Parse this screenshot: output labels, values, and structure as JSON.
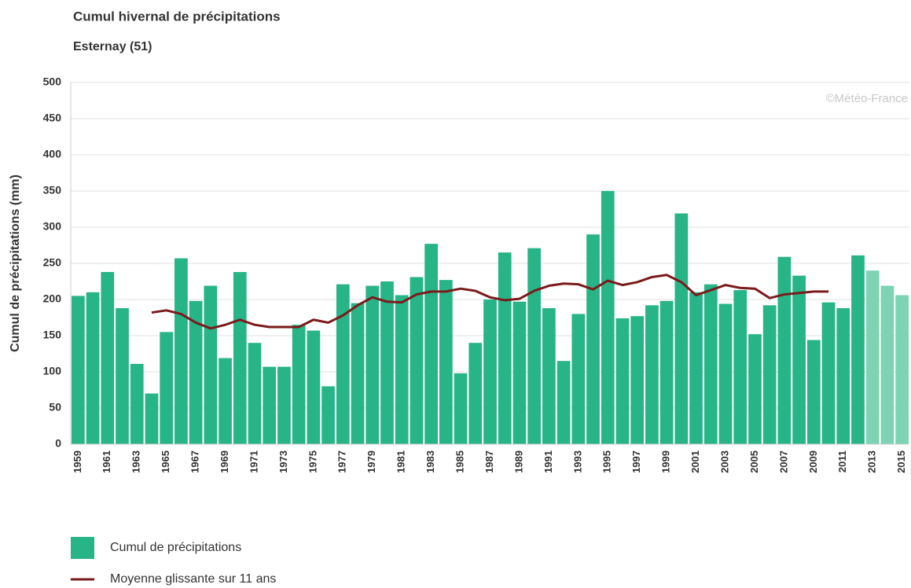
{
  "chart_data": {
    "type": "bar",
    "title": "Cumul hivernal de précipitations",
    "subtitle": "Esternay (51)",
    "ylabel": "Cumul de précipitations (mm)",
    "credit": "©Météo-France",
    "categories": [
      "1959",
      null,
      "1961",
      null,
      "1963",
      null,
      "1965",
      null,
      "1967",
      null,
      "1969",
      null,
      "1971",
      null,
      "1973",
      null,
      "1975",
      null,
      "1977",
      null,
      "1979",
      null,
      "1981",
      null,
      "1983",
      null,
      "1985",
      null,
      "1987",
      null,
      "1989",
      null,
      "1991",
      null,
      "1993",
      null,
      "1995",
      null,
      "1997",
      null,
      "1999",
      null,
      "2001",
      null,
      "2003",
      null,
      "2005",
      null,
      "2007",
      null,
      "2009",
      null,
      "2011",
      null,
      "2013",
      null,
      "2015"
    ],
    "series": [
      {
        "name": "Cumul de précipitations",
        "type": "bar",
        "color": "#27b487",
        "colors": [
          "#27b487",
          "#27b487",
          "#27b487",
          "#27b487",
          "#27b487",
          "#27b487",
          "#27b487",
          "#27b487",
          "#27b487",
          "#27b487",
          "#27b487",
          "#27b487",
          "#27b487",
          "#27b487",
          "#27b487",
          "#27b487",
          "#27b487",
          "#27b487",
          "#27b487",
          "#27b487",
          "#27b487",
          "#27b487",
          "#27b487",
          "#27b487",
          "#27b487",
          "#27b487",
          "#27b487",
          "#27b487",
          "#27b487",
          "#27b487",
          "#27b487",
          "#27b487",
          "#27b487",
          "#27b487",
          "#27b487",
          "#27b487",
          "#27b487",
          "#27b487",
          "#27b487",
          "#27b487",
          "#27b487",
          "#27b487",
          "#27b487",
          "#27b487",
          "#27b487",
          "#27b487",
          "#27b487",
          "#27b487",
          "#27b487",
          "#27b487",
          "#27b487",
          "#27b487",
          "#27b487",
          "#27b487",
          "#7dd3b3",
          "#7dd3b3",
          "#7dd3b3"
        ],
        "values": [
          205,
          210,
          238,
          188,
          111,
          70,
          155,
          257,
          198,
          219,
          119,
          238,
          140,
          107,
          107,
          165,
          157,
          80,
          221,
          195,
          219,
          225,
          206,
          231,
          277,
          227,
          98,
          140,
          200,
          265,
          197,
          271,
          188,
          115,
          180,
          290,
          350,
          174,
          177,
          192,
          198,
          319,
          210,
          221,
          194,
          213,
          152,
          192,
          259,
          233,
          144,
          196,
          188,
          261,
          240,
          219,
          206
        ]
      },
      {
        "name": "Moyenne glissante sur 11 ans",
        "type": "line",
        "color": "#7b1a1a",
        "values": [
          null,
          null,
          null,
          null,
          null,
          182,
          185,
          180,
          168,
          160,
          165,
          172,
          165,
          162,
          162,
          162,
          172,
          168,
          178,
          192,
          203,
          197,
          196,
          207,
          211,
          211,
          215,
          212,
          203,
          199,
          201,
          212,
          219,
          222,
          221,
          214,
          226,
          220,
          224,
          231,
          234,
          224,
          206,
          213,
          220,
          216,
          215,
          202,
          207,
          209,
          211,
          211,
          null,
          null,
          null,
          null,
          null
        ]
      }
    ],
    "ylim": [
      0,
      500
    ],
    "yticks": [
      0,
      50,
      100,
      150,
      200,
      250,
      300,
      350,
      400,
      450,
      500
    ],
    "grid": true
  }
}
